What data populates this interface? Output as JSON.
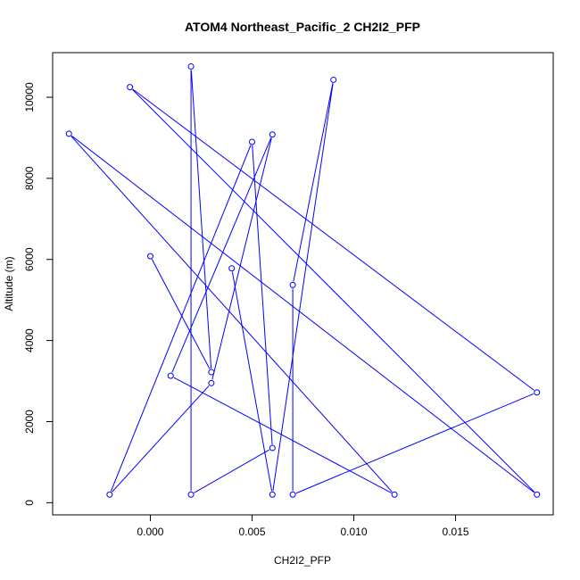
{
  "chart_data": {
    "type": "line",
    "title": "ATOM4 Northeast_Pacific_2 CH2I2_PFP",
    "xlabel": "CH2I2_PFP",
    "ylabel": "Altitude (m)",
    "xlim": [
      -0.0048,
      0.0198
    ],
    "ylim": [
      -300,
      11100
    ],
    "x_ticks": [
      0.0,
      0.005,
      0.01,
      0.015
    ],
    "x_tick_labels": [
      "0.000",
      "0.005",
      "0.010",
      "0.015"
    ],
    "y_ticks": [
      0,
      2000,
      4000,
      6000,
      8000,
      10000
    ],
    "y_tick_labels": [
      "0",
      "2000",
      "4000",
      "6000",
      "8000",
      "10000"
    ],
    "grid": false,
    "legend": "none",
    "point_style": "open-circle",
    "line_color": "#0000ff",
    "series": [
      {
        "x": [
          0.0,
          0.003,
          0.002,
          0.002,
          0.006,
          0.005,
          -0.002,
          0.003,
          0.006,
          0.001,
          0.012,
          -0.004,
          0.019,
          -0.001,
          0.019,
          0.007,
          0.007,
          0.009,
          0.006,
          0.004
        ],
        "y": [
          6080,
          3220,
          10760,
          200,
          1350,
          8900,
          200,
          2950,
          9080,
          3130,
          200,
          9100,
          200,
          10250,
          2720,
          200,
          5370,
          10430,
          200,
          5780
        ]
      }
    ]
  }
}
